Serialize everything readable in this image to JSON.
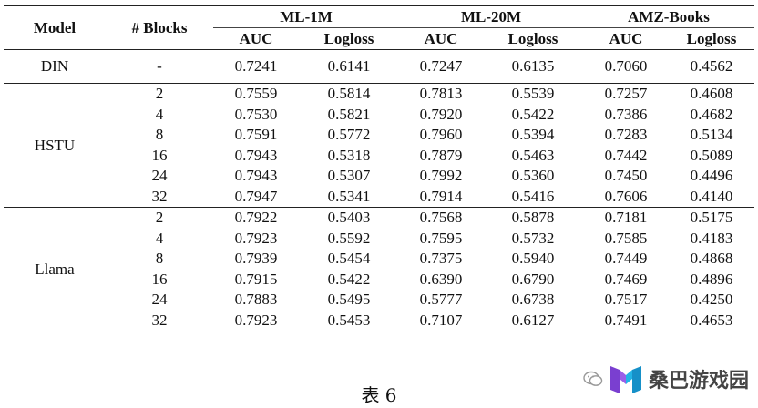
{
  "table": {
    "headers": {
      "model": "Model",
      "blocks": "# Blocks",
      "datasets": [
        "ML-1M",
        "ML-20M",
        "AMZ-Books"
      ],
      "metrics": [
        "AUC",
        "Logloss",
        "AUC",
        "Logloss",
        "AUC",
        "Logloss"
      ]
    },
    "groups": [
      {
        "model": "DIN",
        "rows": [
          {
            "blocks": "-",
            "values": [
              "0.7241",
              "0.6141",
              "0.7247",
              "0.6135",
              "0.7060",
              "0.4562"
            ]
          }
        ]
      },
      {
        "model": "HSTU",
        "rows": [
          {
            "blocks": "2",
            "values": [
              "0.7559",
              "0.5814",
              "0.7813",
              "0.5539",
              "0.7257",
              "0.4608"
            ]
          },
          {
            "blocks": "4",
            "values": [
              "0.7530",
              "0.5821",
              "0.7920",
              "0.5422",
              "0.7386",
              "0.4682"
            ]
          },
          {
            "blocks": "8",
            "values": [
              "0.7591",
              "0.5772",
              "0.7960",
              "0.5394",
              "0.7283",
              "0.5134"
            ]
          },
          {
            "blocks": "16",
            "values": [
              "0.7943",
              "0.5318",
              "0.7879",
              "0.5463",
              "0.7442",
              "0.5089"
            ]
          },
          {
            "blocks": "24",
            "values": [
              "0.7943",
              "0.5307",
              "0.7992",
              "0.5360",
              "0.7450",
              "0.4496"
            ]
          },
          {
            "blocks": "32",
            "values": [
              "0.7947",
              "0.5341",
              "0.7914",
              "0.5416",
              "0.7606",
              "0.4140"
            ]
          }
        ]
      },
      {
        "model": "Llama",
        "rows": [
          {
            "blocks": "2",
            "values": [
              "0.7922",
              "0.5403",
              "0.7568",
              "0.5878",
              "0.7181",
              "0.5175"
            ]
          },
          {
            "blocks": "4",
            "values": [
              "0.7923",
              "0.5592",
              "0.7595",
              "0.5732",
              "0.7585",
              "0.4183"
            ]
          },
          {
            "blocks": "8",
            "values": [
              "0.7939",
              "0.5454",
              "0.7375",
              "0.5940",
              "0.7449",
              "0.4868"
            ]
          },
          {
            "blocks": "16",
            "values": [
              "0.7915",
              "0.5422",
              "0.6390",
              "0.6790",
              "0.7469",
              "0.4896"
            ]
          },
          {
            "blocks": "24",
            "values": [
              "0.7883",
              "0.5495",
              "0.5777",
              "0.6738",
              "0.7517",
              "0.4250"
            ]
          },
          {
            "blocks": "32",
            "values": [
              "0.7923",
              "0.5453",
              "0.7107",
              "0.6127",
              "0.7491",
              "0.4653"
            ]
          }
        ]
      }
    ]
  },
  "caption": "表 6",
  "watermark": {
    "text": "桑巴游戏园",
    "logo_colors": [
      "#7a3fd0",
      "#23b4e6"
    ]
  }
}
